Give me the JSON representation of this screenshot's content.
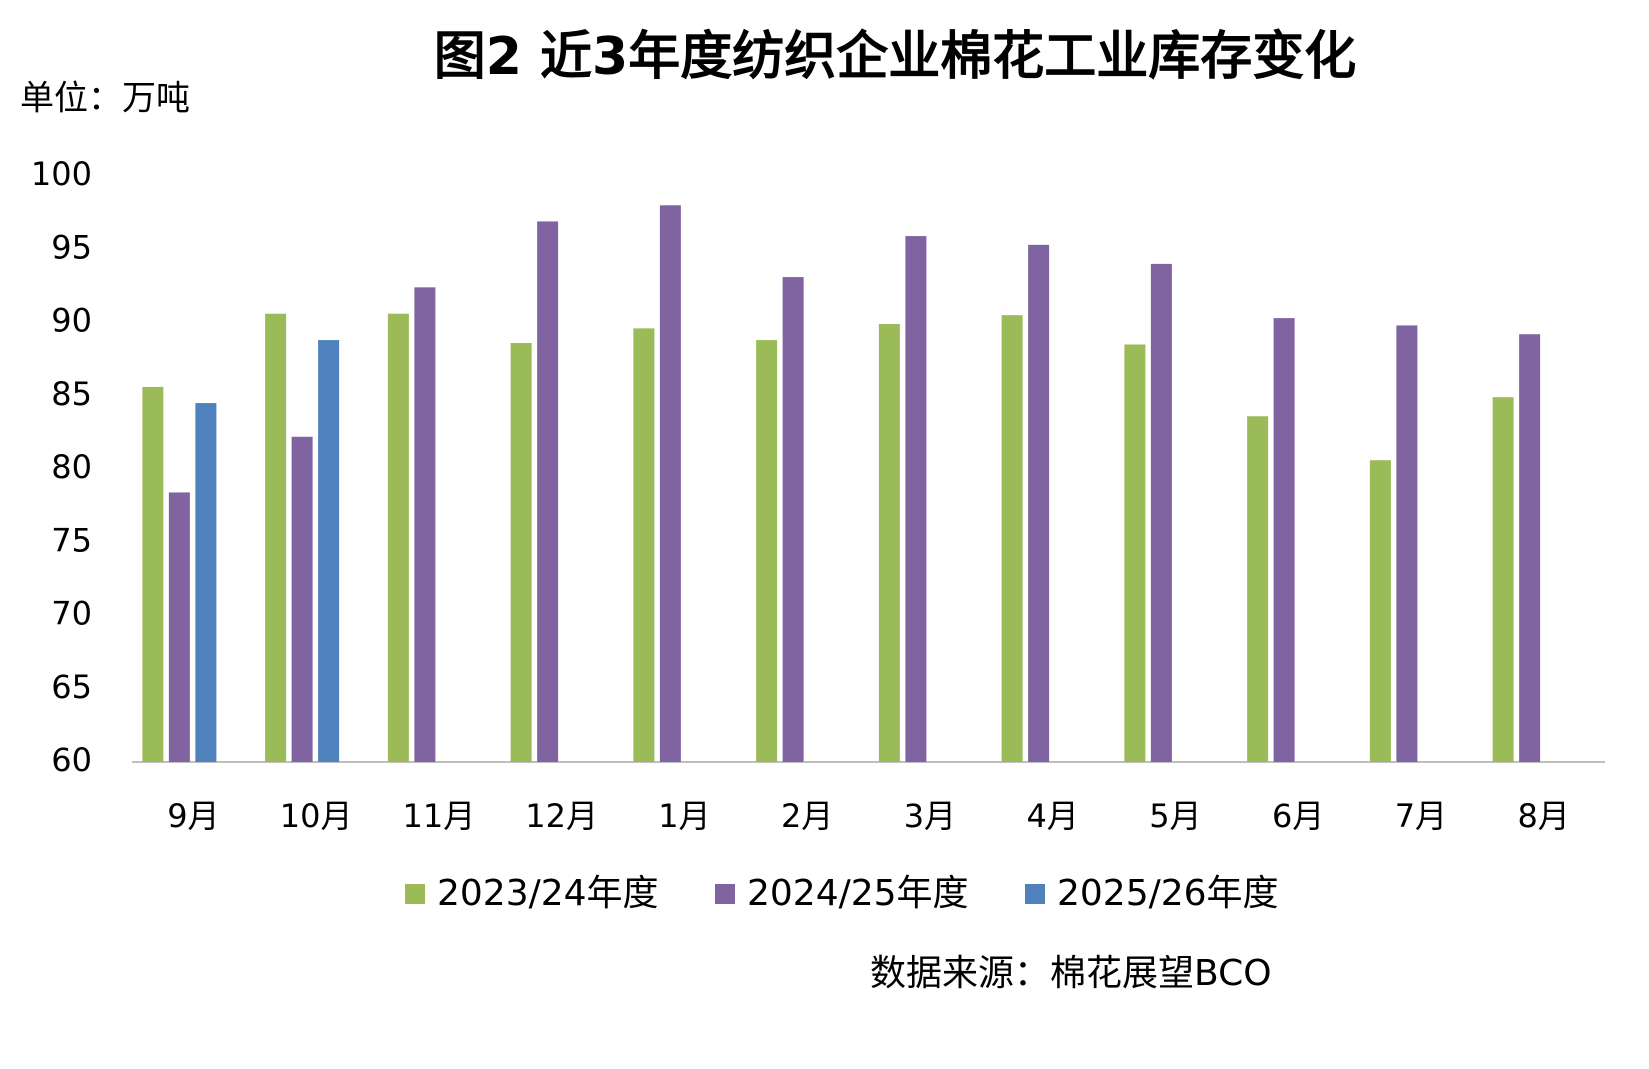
{
  "chart_data": {
    "type": "bar",
    "title": "图2 近3年度纺织企业棉花工业库存变化",
    "unit_label": "单位：万吨",
    "source": "数据来源：棉花展望BCO",
    "categories": [
      "9月",
      "10月",
      "11月",
      "12月",
      "1月",
      "2月",
      "3月",
      "4月",
      "5月",
      "6月",
      "7月",
      "8月"
    ],
    "series": [
      {
        "name": "2023/24年度",
        "color": "#9bbb59",
        "values": [
          85.6,
          90.6,
          90.6,
          88.6,
          89.6,
          88.8,
          89.9,
          90.5,
          88.5,
          83.6,
          80.6,
          84.9
        ]
      },
      {
        "name": "2024/25年度",
        "color": "#8064a2",
        "values": [
          78.4,
          82.2,
          92.4,
          96.9,
          98.0,
          93.1,
          95.9,
          95.3,
          94.0,
          90.3,
          89.8,
          89.2
        ]
      },
      {
        "name": "2025/26年度",
        "color": "#4f81bd",
        "values": [
          84.5,
          88.8,
          null,
          null,
          null,
          null,
          null,
          null,
          null,
          null,
          null,
          null
        ]
      }
    ],
    "ylim": [
      60,
      100
    ],
    "yticks": [
      60,
      65,
      70,
      75,
      80,
      85,
      90,
      95,
      100
    ],
    "grid": false
  }
}
